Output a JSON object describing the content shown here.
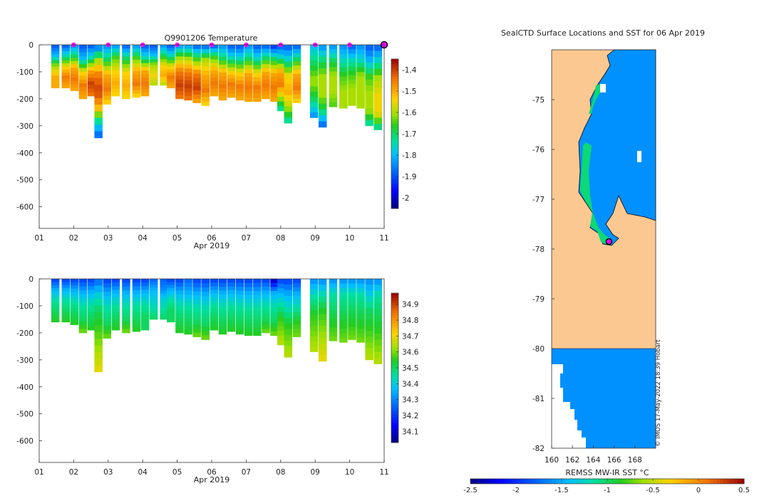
{
  "chart_data": [
    {
      "type": "heatmap",
      "title": "Q9901206  Temperature",
      "xlabel": "Apr 2019",
      "x_ticks": [
        "01",
        "02",
        "03",
        "04",
        "05",
        "06",
        "07",
        "08",
        "09",
        "10",
        "11"
      ],
      "y_ticks": [
        "0",
        "-100",
        "-200",
        "-300",
        "-400",
        "-500",
        "-600"
      ],
      "ylim": [
        -680,
        0
      ],
      "xlim": [
        1,
        11
      ],
      "colorbar_ticks": [
        "-1.4",
        "-1.5",
        "-1.6",
        "-1.7",
        "-1.8",
        "-1.9",
        "-2"
      ],
      "colorbar_range": [
        -2.05,
        -1.35
      ],
      "surface_markers_day": [
        2,
        3,
        4,
        5,
        6,
        7,
        8,
        9,
        10
      ],
      "latest_profile_day": 11,
      "profiles": [
        {
          "day": 1.35,
          "depth": 160,
          "temps": [
            -1.9,
            -1.8,
            -1.6,
            -1.5,
            -1.5
          ]
        },
        {
          "day": 1.65,
          "depth": 160,
          "temps": [
            -1.9,
            -1.75,
            -1.55,
            -1.45,
            -1.5
          ]
        },
        {
          "day": 1.9,
          "depth": 170,
          "temps": [
            -1.85,
            -1.7,
            -1.5,
            -1.45,
            -1.5
          ]
        },
        {
          "day": 2.15,
          "depth": 200,
          "temps": [
            -1.9,
            -1.8,
            -1.55,
            -1.45,
            -1.5
          ]
        },
        {
          "day": 2.4,
          "depth": 190,
          "temps": [
            -1.9,
            -1.75,
            -1.5,
            -1.4,
            -1.45
          ]
        },
        {
          "day": 2.6,
          "depth": 345,
          "temps": [
            -1.9,
            -1.6,
            -1.45,
            -1.4,
            -1.5,
            -1.75,
            -1.9
          ]
        },
        {
          "day": 2.85,
          "depth": 220,
          "temps": [
            -1.85,
            -1.7,
            -1.5,
            -1.45,
            -1.55
          ]
        },
        {
          "day": 3.1,
          "depth": 190,
          "temps": [
            -1.85,
            -1.65,
            -1.55,
            -1.5,
            -1.55
          ]
        },
        {
          "day": 3.4,
          "depth": 200,
          "temps": [
            -1.9,
            -1.7,
            -1.55,
            -1.5,
            -1.55
          ]
        },
        {
          "day": 3.7,
          "depth": 195,
          "temps": [
            -1.85,
            -1.65,
            -1.5,
            -1.45,
            -1.55
          ]
        },
        {
          "day": 3.95,
          "depth": 190,
          "temps": [
            -1.9,
            -1.75,
            -1.5,
            -1.45,
            -1.5
          ]
        },
        {
          "day": 4.2,
          "depth": 150,
          "temps": [
            -1.9,
            -1.8,
            -1.6,
            -1.55,
            -1.6
          ]
        },
        {
          "day": 4.5,
          "depth": 150,
          "temps": [
            -1.85,
            -1.7,
            -1.55,
            -1.5,
            -1.6
          ]
        },
        {
          "day": 4.7,
          "depth": 160,
          "temps": [
            -1.9,
            -1.75,
            -1.55,
            -1.45,
            -1.5
          ]
        },
        {
          "day": 4.95,
          "depth": 200,
          "temps": [
            -1.85,
            -1.6,
            -1.45,
            -1.4,
            -1.45
          ]
        },
        {
          "day": 5.2,
          "depth": 205,
          "temps": [
            -1.85,
            -1.6,
            -1.45,
            -1.4,
            -1.45
          ]
        },
        {
          "day": 5.45,
          "depth": 215,
          "temps": [
            -1.9,
            -1.65,
            -1.45,
            -1.4,
            -1.5
          ]
        },
        {
          "day": 5.7,
          "depth": 225,
          "temps": [
            -1.9,
            -1.6,
            -1.5,
            -1.45,
            -1.55
          ]
        },
        {
          "day": 5.95,
          "depth": 190,
          "temps": [
            -1.9,
            -1.65,
            -1.5,
            -1.45,
            -1.5
          ]
        },
        {
          "day": 6.2,
          "depth": 205,
          "temps": [
            -1.85,
            -1.7,
            -1.5,
            -1.45,
            -1.5
          ]
        },
        {
          "day": 6.45,
          "depth": 195,
          "temps": [
            -1.9,
            -1.75,
            -1.55,
            -1.45,
            -1.5
          ]
        },
        {
          "day": 6.7,
          "depth": 205,
          "temps": [
            -1.9,
            -1.75,
            -1.55,
            -1.45,
            -1.5
          ]
        },
        {
          "day": 6.95,
          "depth": 210,
          "temps": [
            -1.85,
            -1.7,
            -1.5,
            -1.45,
            -1.5
          ]
        },
        {
          "day": 7.2,
          "depth": 210,
          "temps": [
            -1.9,
            -1.75,
            -1.55,
            -1.45,
            -1.5
          ]
        },
        {
          "day": 7.45,
          "depth": 200,
          "temps": [
            -1.9,
            -1.7,
            -1.5,
            -1.45,
            -1.5
          ]
        },
        {
          "day": 7.7,
          "depth": 210,
          "temps": [
            -1.95,
            -1.7,
            -1.5,
            -1.45,
            -1.5
          ]
        },
        {
          "day": 7.9,
          "depth": 245,
          "temps": [
            -1.9,
            -1.75,
            -1.5,
            -1.45,
            -1.6,
            -1.75
          ]
        },
        {
          "day": 8.1,
          "depth": 290,
          "temps": [
            -1.9,
            -1.75,
            -1.55,
            -1.5,
            -1.6,
            -1.75
          ]
        },
        {
          "day": 8.35,
          "depth": 215,
          "temps": [
            -1.9,
            -1.7,
            -1.5,
            -1.45,
            -1.55
          ]
        },
        {
          "day": 8.85,
          "depth": 270,
          "temps": [
            -1.8,
            -1.7,
            -1.6,
            -1.7,
            -1.85
          ]
        },
        {
          "day": 9.1,
          "depth": 305,
          "temps": [
            -1.85,
            -1.7,
            -1.6,
            -1.6,
            -1.7,
            -1.9
          ]
        },
        {
          "day": 9.4,
          "depth": 230,
          "temps": [
            -1.85,
            -1.7,
            -1.6,
            -1.6,
            -1.65
          ]
        },
        {
          "day": 9.7,
          "depth": 235,
          "temps": [
            -1.85,
            -1.75,
            -1.65,
            -1.6,
            -1.6
          ]
        },
        {
          "day": 9.95,
          "depth": 225,
          "temps": [
            -1.9,
            -1.75,
            -1.65,
            -1.6,
            -1.6
          ]
        },
        {
          "day": 10.2,
          "depth": 235,
          "temps": [
            -1.85,
            -1.75,
            -1.6,
            -1.6,
            -1.6
          ]
        },
        {
          "day": 10.45,
          "depth": 300,
          "temps": [
            -1.9,
            -1.8,
            -1.65,
            -1.6,
            -1.6,
            -1.75
          ]
        },
        {
          "day": 10.7,
          "depth": 315,
          "temps": [
            -1.9,
            -1.75,
            -1.6,
            -1.55,
            -1.55,
            -1.75
          ]
        }
      ]
    },
    {
      "type": "heatmap",
      "title": "",
      "xlabel": "Apr 2019",
      "x_ticks": [
        "01",
        "02",
        "03",
        "04",
        "05",
        "06",
        "07",
        "08",
        "09",
        "10",
        "11"
      ],
      "y_ticks": [
        "0",
        "-100",
        "-200",
        "-300",
        "-400",
        "-500",
        "-600"
      ],
      "ylim": [
        -680,
        0
      ],
      "xlim": [
        1,
        11
      ],
      "colorbar_ticks": [
        "34.9",
        "34.8",
        "34.7",
        "34.6",
        "34.5",
        "34.4",
        "34.3",
        "34.2",
        "34.1"
      ],
      "colorbar_range": [
        34.03,
        34.97
      ],
      "profiles": [
        {
          "day": 1.35,
          "depth": 160,
          "sal": [
            34.2,
            34.35,
            34.45,
            34.5,
            34.55
          ]
        },
        {
          "day": 1.65,
          "depth": 160,
          "sal": [
            34.2,
            34.35,
            34.45,
            34.5,
            34.55
          ]
        },
        {
          "day": 1.9,
          "depth": 170,
          "sal": [
            34.2,
            34.35,
            34.45,
            34.5,
            34.55
          ]
        },
        {
          "day": 2.15,
          "depth": 200,
          "sal": [
            34.2,
            34.35,
            34.45,
            34.5,
            34.6
          ]
        },
        {
          "day": 2.4,
          "depth": 190,
          "sal": [
            34.2,
            34.35,
            34.45,
            34.5,
            34.55
          ]
        },
        {
          "day": 2.6,
          "depth": 345,
          "sal": [
            34.25,
            34.4,
            34.5,
            34.55,
            34.6,
            34.65,
            34.7
          ]
        },
        {
          "day": 2.85,
          "depth": 220,
          "sal": [
            34.2,
            34.35,
            34.45,
            34.5,
            34.6
          ]
        },
        {
          "day": 3.1,
          "depth": 190,
          "sal": [
            34.2,
            34.35,
            34.45,
            34.5,
            34.55
          ]
        },
        {
          "day": 3.4,
          "depth": 200,
          "sal": [
            34.2,
            34.35,
            34.45,
            34.5,
            34.6
          ]
        },
        {
          "day": 3.7,
          "depth": 195,
          "sal": [
            34.2,
            34.35,
            34.45,
            34.5,
            34.55
          ]
        },
        {
          "day": 3.95,
          "depth": 190,
          "sal": [
            34.2,
            34.35,
            34.45,
            34.5,
            34.5
          ]
        },
        {
          "day": 4.2,
          "depth": 150,
          "sal": [
            34.25,
            34.35,
            34.4,
            34.45,
            34.5
          ]
        },
        {
          "day": 4.5,
          "depth": 150,
          "sal": [
            34.25,
            34.3,
            34.4,
            34.45,
            34.5
          ]
        },
        {
          "day": 4.7,
          "depth": 160,
          "sal": [
            34.2,
            34.35,
            34.45,
            34.5,
            34.5
          ]
        },
        {
          "day": 4.95,
          "depth": 200,
          "sal": [
            34.2,
            34.35,
            34.45,
            34.5,
            34.55
          ]
        },
        {
          "day": 5.2,
          "depth": 205,
          "sal": [
            34.25,
            34.35,
            34.45,
            34.5,
            34.55
          ]
        },
        {
          "day": 5.45,
          "depth": 215,
          "sal": [
            34.2,
            34.35,
            34.45,
            34.5,
            34.6
          ]
        },
        {
          "day": 5.7,
          "depth": 225,
          "sal": [
            34.2,
            34.35,
            34.45,
            34.5,
            34.6
          ]
        },
        {
          "day": 5.95,
          "depth": 190,
          "sal": [
            34.2,
            34.35,
            34.45,
            34.5,
            34.55
          ]
        },
        {
          "day": 6.2,
          "depth": 205,
          "sal": [
            34.2,
            34.35,
            34.45,
            34.5,
            34.55
          ]
        },
        {
          "day": 6.45,
          "depth": 195,
          "sal": [
            34.2,
            34.35,
            34.45,
            34.5,
            34.55
          ]
        },
        {
          "day": 6.7,
          "depth": 205,
          "sal": [
            34.2,
            34.35,
            34.45,
            34.5,
            34.55
          ]
        },
        {
          "day": 6.95,
          "depth": 210,
          "sal": [
            34.2,
            34.35,
            34.45,
            34.5,
            34.55
          ]
        },
        {
          "day": 7.2,
          "depth": 210,
          "sal": [
            34.2,
            34.35,
            34.45,
            34.5,
            34.55
          ]
        },
        {
          "day": 7.45,
          "depth": 200,
          "sal": [
            34.2,
            34.35,
            34.45,
            34.5,
            34.6
          ]
        },
        {
          "day": 7.7,
          "depth": 210,
          "sal": [
            34.05,
            34.35,
            34.45,
            34.5,
            34.6
          ]
        },
        {
          "day": 7.9,
          "depth": 245,
          "sal": [
            34.2,
            34.35,
            34.45,
            34.55,
            34.6,
            34.65
          ]
        },
        {
          "day": 8.1,
          "depth": 290,
          "sal": [
            34.2,
            34.35,
            34.45,
            34.55,
            34.6,
            34.65
          ]
        },
        {
          "day": 8.35,
          "depth": 215,
          "sal": [
            34.2,
            34.35,
            34.45,
            34.55,
            34.6
          ]
        },
        {
          "day": 8.85,
          "depth": 270,
          "sal": [
            34.3,
            34.45,
            34.55,
            34.6,
            34.65
          ]
        },
        {
          "day": 9.1,
          "depth": 305,
          "sal": [
            34.3,
            34.45,
            34.55,
            34.6,
            34.65,
            34.7
          ]
        },
        {
          "day": 9.4,
          "depth": 230,
          "sal": [
            34.3,
            34.45,
            34.5,
            34.55,
            34.6
          ]
        },
        {
          "day": 9.7,
          "depth": 235,
          "sal": [
            34.3,
            34.45,
            34.5,
            34.55,
            34.6
          ]
        },
        {
          "day": 9.95,
          "depth": 225,
          "sal": [
            34.3,
            34.45,
            34.5,
            34.55,
            34.6
          ]
        },
        {
          "day": 10.2,
          "depth": 235,
          "sal": [
            34.3,
            34.45,
            34.5,
            34.55,
            34.6
          ]
        },
        {
          "day": 10.45,
          "depth": 300,
          "sal": [
            34.3,
            34.4,
            34.5,
            34.55,
            34.6,
            34.65
          ]
        },
        {
          "day": 10.7,
          "depth": 315,
          "sal": [
            34.3,
            34.45,
            34.5,
            34.55,
            34.6,
            34.65
          ]
        }
      ]
    },
    {
      "type": "heatmap",
      "title": "SealCTD Surface Locations and SST for 06 Apr 2019",
      "xlabel": "",
      "x_ticks": [
        "160",
        "162",
        "164",
        "166",
        "168"
      ],
      "y_ticks": [
        "-75",
        "-76",
        "-77",
        "-78",
        "-79",
        "-80",
        "-81",
        "-82"
      ],
      "xlim": [
        160,
        170
      ],
      "ylim": [
        -82,
        -74
      ],
      "colorbar_label": "REMSS MW-IR SST °C",
      "colorbar_ticks": [
        "-2.5",
        "-2",
        "-1.5",
        "-1",
        "-0.5",
        "0",
        "0.5"
      ],
      "colorbar_range": [
        -2.5,
        0.5
      ],
      "ocean_sst": -1.6,
      "coastal_sst": -1.05,
      "seal_location": {
        "lon": 165.5,
        "lat": -77.85
      },
      "credit": "© IMOS 17-May-2022 18:39 Hobart"
    }
  ]
}
